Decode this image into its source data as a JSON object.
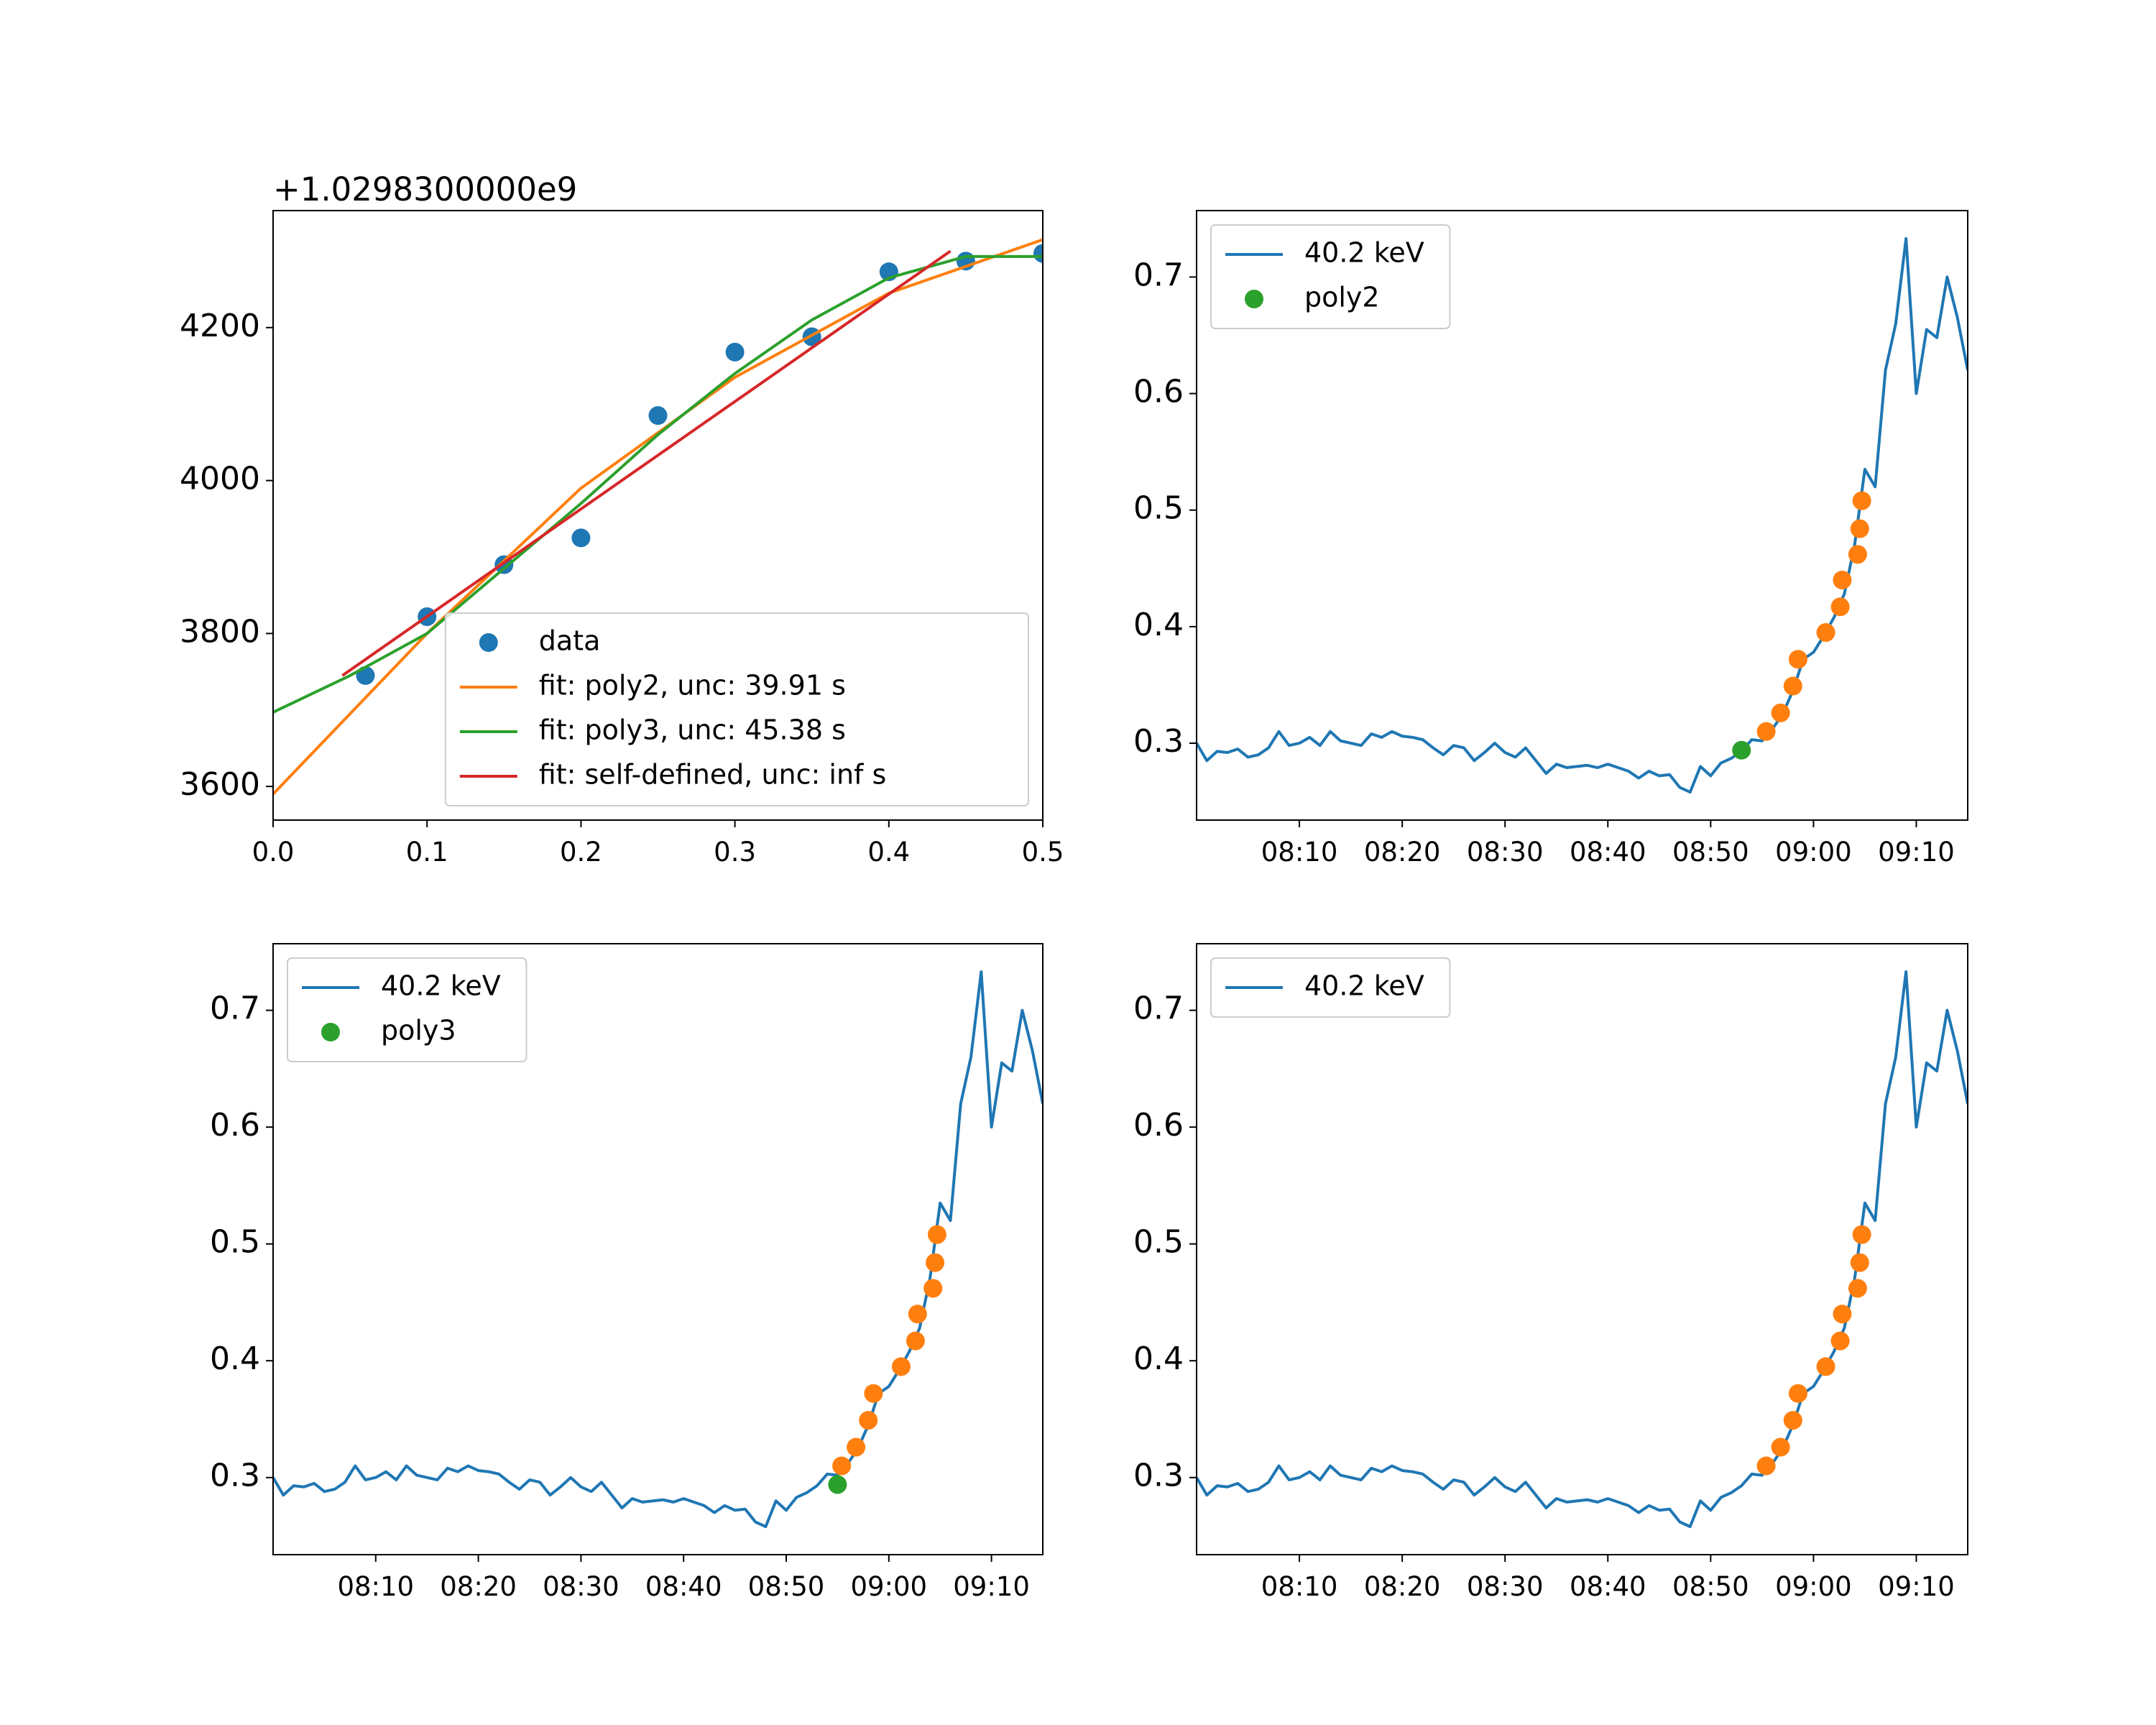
{
  "chart_data": [
    {
      "type": "line",
      "offset_text": "+1.0298300000e9",
      "xlim": [
        0,
        0.5
      ],
      "ylim": [
        3556,
        4353
      ],
      "xticks": [
        {
          "value": 0,
          "label": "0.0"
        },
        0.1,
        0.2,
        0.3,
        0.4,
        0.5
      ],
      "yticks": [
        3600,
        3800,
        4000,
        4200
      ],
      "legend": "lower right",
      "series": [
        {
          "name": "data",
          "mode": "markers",
          "color": "#1f77b4",
          "x": [
            0.06,
            0.1,
            0.15,
            0.2,
            0.25,
            0.3,
            0.35,
            0.4,
            0.45,
            0.5
          ],
          "values": [
            3745,
            3822,
            3890,
            3925,
            4085,
            4168,
            4188,
            4273,
            4287,
            4297
          ]
        },
        {
          "name": "fit: poly2, unc: 39.91 s",
          "mode": "lines",
          "color": "#ff7f0e",
          "x": [
            0,
            0.1,
            0.2,
            0.3,
            0.4,
            0.5
          ],
          "values": [
            3590,
            3800,
            3990,
            4135,
            4245,
            4315
          ]
        },
        {
          "name": "fit: poly3, unc: 45.38 s",
          "mode": "lines",
          "color": "#2ca02c",
          "x": [
            0,
            0.05,
            0.1,
            0.15,
            0.2,
            0.25,
            0.3,
            0.35,
            0.4,
            0.45,
            0.5
          ],
          "values": [
            3697,
            3745,
            3800,
            3885,
            3970,
            4060,
            4140,
            4210,
            4265,
            4293,
            4293
          ]
        },
        {
          "name": "fit: self-defined, unc: inf s",
          "mode": "lines",
          "color": "#d62728",
          "x": [
            0.045,
            0.44
          ],
          "values": [
            3745,
            4300
          ]
        }
      ]
    },
    {
      "type": "line",
      "xlim": [
        "08:00",
        "09:15"
      ],
      "ylim": [
        0.234,
        0.757
      ],
      "xticks": [
        "08:10",
        "08:20",
        "08:30",
        "08:40",
        "08:50",
        "09:00",
        "09:10"
      ],
      "yticks": [
        0.3,
        0.4,
        0.5,
        0.6,
        0.7
      ],
      "legend": "upper left",
      "series": [
        {
          "name": "40.2 keV",
          "mode": "lines",
          "color": "#1f77b4",
          "x": [
            "08:00",
            "08:01",
            "08:02",
            "08:03",
            "08:04",
            "08:05",
            "08:06",
            "08:07",
            "08:08",
            "08:09",
            "08:10",
            "08:11",
            "08:12",
            "08:13",
            "08:14",
            "08:15",
            "08:16",
            "08:17",
            "08:18",
            "08:19",
            "08:20",
            "08:21",
            "08:22",
            "08:23",
            "08:24",
            "08:25",
            "08:26",
            "08:27",
            "08:28",
            "08:29",
            "08:30",
            "08:31",
            "08:32",
            "08:33",
            "08:34",
            "08:35",
            "08:36",
            "08:37",
            "08:38",
            "08:39",
            "08:40",
            "08:41",
            "08:42",
            "08:43",
            "08:44",
            "08:45",
            "08:46",
            "08:47",
            "08:48",
            "08:49",
            "08:50",
            "08:51",
            "08:52",
            "08:53",
            "08:54",
            "08:55",
            "08:56",
            "08:57",
            "08:58",
            "08:59",
            "09:00",
            "09:01",
            "09:02",
            "09:03",
            "09:04",
            "09:05",
            "09:06",
            "09:07",
            "09:08",
            "09:09",
            "09:10",
            "09:11",
            "09:12",
            "09:13",
            "09:14",
            "09:15"
          ],
          "values": [
            0.3,
            0.285,
            0.293,
            0.292,
            0.295,
            0.288,
            0.29,
            0.296,
            0.31,
            0.298,
            0.3,
            0.305,
            0.298,
            0.31,
            0.302,
            0.3,
            0.298,
            0.308,
            0.305,
            0.31,
            0.306,
            0.305,
            0.303,
            0.296,
            0.29,
            0.298,
            0.296,
            0.285,
            0.292,
            0.3,
            0.292,
            0.288,
            0.296,
            0.285,
            0.274,
            0.282,
            0.279,
            0.28,
            0.281,
            0.279,
            0.282,
            0.279,
            0.276,
            0.27,
            0.276,
            0.272,
            0.273,
            0.262,
            0.258,
            0.28,
            0.272,
            0.283,
            0.287,
            0.293,
            0.303,
            0.302,
            0.312,
            0.325,
            0.345,
            0.372,
            0.378,
            0.392,
            0.408,
            0.428,
            0.47,
            0.535,
            0.52,
            0.62,
            0.66,
            0.733,
            0.6,
            0.655,
            0.648,
            0.7,
            0.665,
            0.62
          ]
        },
        {
          "mode": "markers",
          "color": "#ff7f0e",
          "x": [
            "08:55:24",
            "08:56:48",
            "08:58:00",
            "08:58:30",
            "09:01:12",
            "09:02:36",
            "09:02:48",
            "09:04:18",
            "09:04:30",
            "09:04:42"
          ],
          "values": [
            0.31,
            0.326,
            0.349,
            0.372,
            0.395,
            0.417,
            0.44,
            0.462,
            0.484,
            0.508
          ]
        },
        {
          "name": "poly2",
          "mode": "markers",
          "color": "#2ca02c",
          "x": [
            "08:53:00"
          ],
          "values": [
            0.294
          ]
        }
      ]
    },
    {
      "type": "line",
      "xlim": [
        "08:00",
        "09:15"
      ],
      "ylim": [
        0.234,
        0.757
      ],
      "xticks": [
        "08:10",
        "08:20",
        "08:30",
        "08:40",
        "08:50",
        "09:00",
        "09:10"
      ],
      "yticks": [
        0.3,
        0.4,
        0.5,
        0.6,
        0.7
      ],
      "legend": "upper left",
      "series": [
        {
          "name": "40.2 keV",
          "mode": "lines",
          "color": "#1f77b4",
          "x": [
            "08:00",
            "08:01",
            "08:02",
            "08:03",
            "08:04",
            "08:05",
            "08:06",
            "08:07",
            "08:08",
            "08:09",
            "08:10",
            "08:11",
            "08:12",
            "08:13",
            "08:14",
            "08:15",
            "08:16",
            "08:17",
            "08:18",
            "08:19",
            "08:20",
            "08:21",
            "08:22",
            "08:23",
            "08:24",
            "08:25",
            "08:26",
            "08:27",
            "08:28",
            "08:29",
            "08:30",
            "08:31",
            "08:32",
            "08:33",
            "08:34",
            "08:35",
            "08:36",
            "08:37",
            "08:38",
            "08:39",
            "08:40",
            "08:41",
            "08:42",
            "08:43",
            "08:44",
            "08:45",
            "08:46",
            "08:47",
            "08:48",
            "08:49",
            "08:50",
            "08:51",
            "08:52",
            "08:53",
            "08:54",
            "08:55",
            "08:56",
            "08:57",
            "08:58",
            "08:59",
            "09:00",
            "09:01",
            "09:02",
            "09:03",
            "09:04",
            "09:05",
            "09:06",
            "09:07",
            "09:08",
            "09:09",
            "09:10",
            "09:11",
            "09:12",
            "09:13",
            "09:14",
            "09:15"
          ],
          "values": [
            0.3,
            0.285,
            0.293,
            0.292,
            0.295,
            0.288,
            0.29,
            0.296,
            0.31,
            0.298,
            0.3,
            0.305,
            0.298,
            0.31,
            0.302,
            0.3,
            0.298,
            0.308,
            0.305,
            0.31,
            0.306,
            0.305,
            0.303,
            0.296,
            0.29,
            0.298,
            0.296,
            0.285,
            0.292,
            0.3,
            0.292,
            0.288,
            0.296,
            0.285,
            0.274,
            0.282,
            0.279,
            0.28,
            0.281,
            0.279,
            0.282,
            0.279,
            0.276,
            0.27,
            0.276,
            0.272,
            0.273,
            0.262,
            0.258,
            0.28,
            0.272,
            0.283,
            0.287,
            0.293,
            0.303,
            0.302,
            0.312,
            0.325,
            0.345,
            0.372,
            0.378,
            0.392,
            0.408,
            0.428,
            0.47,
            0.535,
            0.52,
            0.62,
            0.66,
            0.733,
            0.6,
            0.655,
            0.648,
            0.7,
            0.665,
            0.62
          ]
        },
        {
          "mode": "markers",
          "color": "#ff7f0e",
          "x": [
            "08:55:24",
            "08:56:48",
            "08:58:00",
            "08:58:30",
            "09:01:12",
            "09:02:36",
            "09:02:48",
            "09:04:18",
            "09:04:30",
            "09:04:42"
          ],
          "values": [
            0.31,
            0.326,
            0.349,
            0.372,
            0.395,
            0.417,
            0.44,
            0.462,
            0.484,
            0.508
          ]
        },
        {
          "name": "poly3",
          "mode": "markers",
          "color": "#2ca02c",
          "x": [
            "08:55:00"
          ],
          "values": [
            0.294
          ]
        }
      ]
    },
    {
      "type": "line",
      "xlim": [
        "08:00",
        "09:15"
      ],
      "ylim": [
        0.234,
        0.757
      ],
      "xticks": [
        "08:10",
        "08:20",
        "08:30",
        "08:40",
        "08:50",
        "09:00",
        "09:10"
      ],
      "yticks": [
        0.3,
        0.4,
        0.5,
        0.6,
        0.7
      ],
      "legend": "upper left",
      "series": [
        {
          "name": "40.2 keV",
          "mode": "lines",
          "color": "#1f77b4",
          "x": [
            "08:00",
            "08:01",
            "08:02",
            "08:03",
            "08:04",
            "08:05",
            "08:06",
            "08:07",
            "08:08",
            "08:09",
            "08:10",
            "08:11",
            "08:12",
            "08:13",
            "08:14",
            "08:15",
            "08:16",
            "08:17",
            "08:18",
            "08:19",
            "08:20",
            "08:21",
            "08:22",
            "08:23",
            "08:24",
            "08:25",
            "08:26",
            "08:27",
            "08:28",
            "08:29",
            "08:30",
            "08:31",
            "08:32",
            "08:33",
            "08:34",
            "08:35",
            "08:36",
            "08:37",
            "08:38",
            "08:39",
            "08:40",
            "08:41",
            "08:42",
            "08:43",
            "08:44",
            "08:45",
            "08:46",
            "08:47",
            "08:48",
            "08:49",
            "08:50",
            "08:51",
            "08:52",
            "08:53",
            "08:54",
            "08:55",
            "08:56",
            "08:57",
            "08:58",
            "08:59",
            "09:00",
            "09:01",
            "09:02",
            "09:03",
            "09:04",
            "09:05",
            "09:06",
            "09:07",
            "09:08",
            "09:09",
            "09:10",
            "09:11",
            "09:12",
            "09:13",
            "09:14",
            "09:15"
          ],
          "values": [
            0.3,
            0.285,
            0.293,
            0.292,
            0.295,
            0.288,
            0.29,
            0.296,
            0.31,
            0.298,
            0.3,
            0.305,
            0.298,
            0.31,
            0.302,
            0.3,
            0.298,
            0.308,
            0.305,
            0.31,
            0.306,
            0.305,
            0.303,
            0.296,
            0.29,
            0.298,
            0.296,
            0.285,
            0.292,
            0.3,
            0.292,
            0.288,
            0.296,
            0.285,
            0.274,
            0.282,
            0.279,
            0.28,
            0.281,
            0.279,
            0.282,
            0.279,
            0.276,
            0.27,
            0.276,
            0.272,
            0.273,
            0.262,
            0.258,
            0.28,
            0.272,
            0.283,
            0.287,
            0.293,
            0.303,
            0.302,
            0.312,
            0.325,
            0.345,
            0.372,
            0.378,
            0.392,
            0.408,
            0.428,
            0.47,
            0.535,
            0.52,
            0.62,
            0.66,
            0.733,
            0.6,
            0.655,
            0.648,
            0.7,
            0.665,
            0.62
          ]
        },
        {
          "mode": "markers",
          "color": "#ff7f0e",
          "x": [
            "08:55:24",
            "08:56:48",
            "08:58:00",
            "08:58:30",
            "09:01:12",
            "09:02:36",
            "09:02:48",
            "09:04:18",
            "09:04:30",
            "09:04:42"
          ],
          "values": [
            0.31,
            0.326,
            0.349,
            0.372,
            0.395,
            0.417,
            0.44,
            0.462,
            0.484,
            0.508
          ]
        }
      ]
    }
  ]
}
